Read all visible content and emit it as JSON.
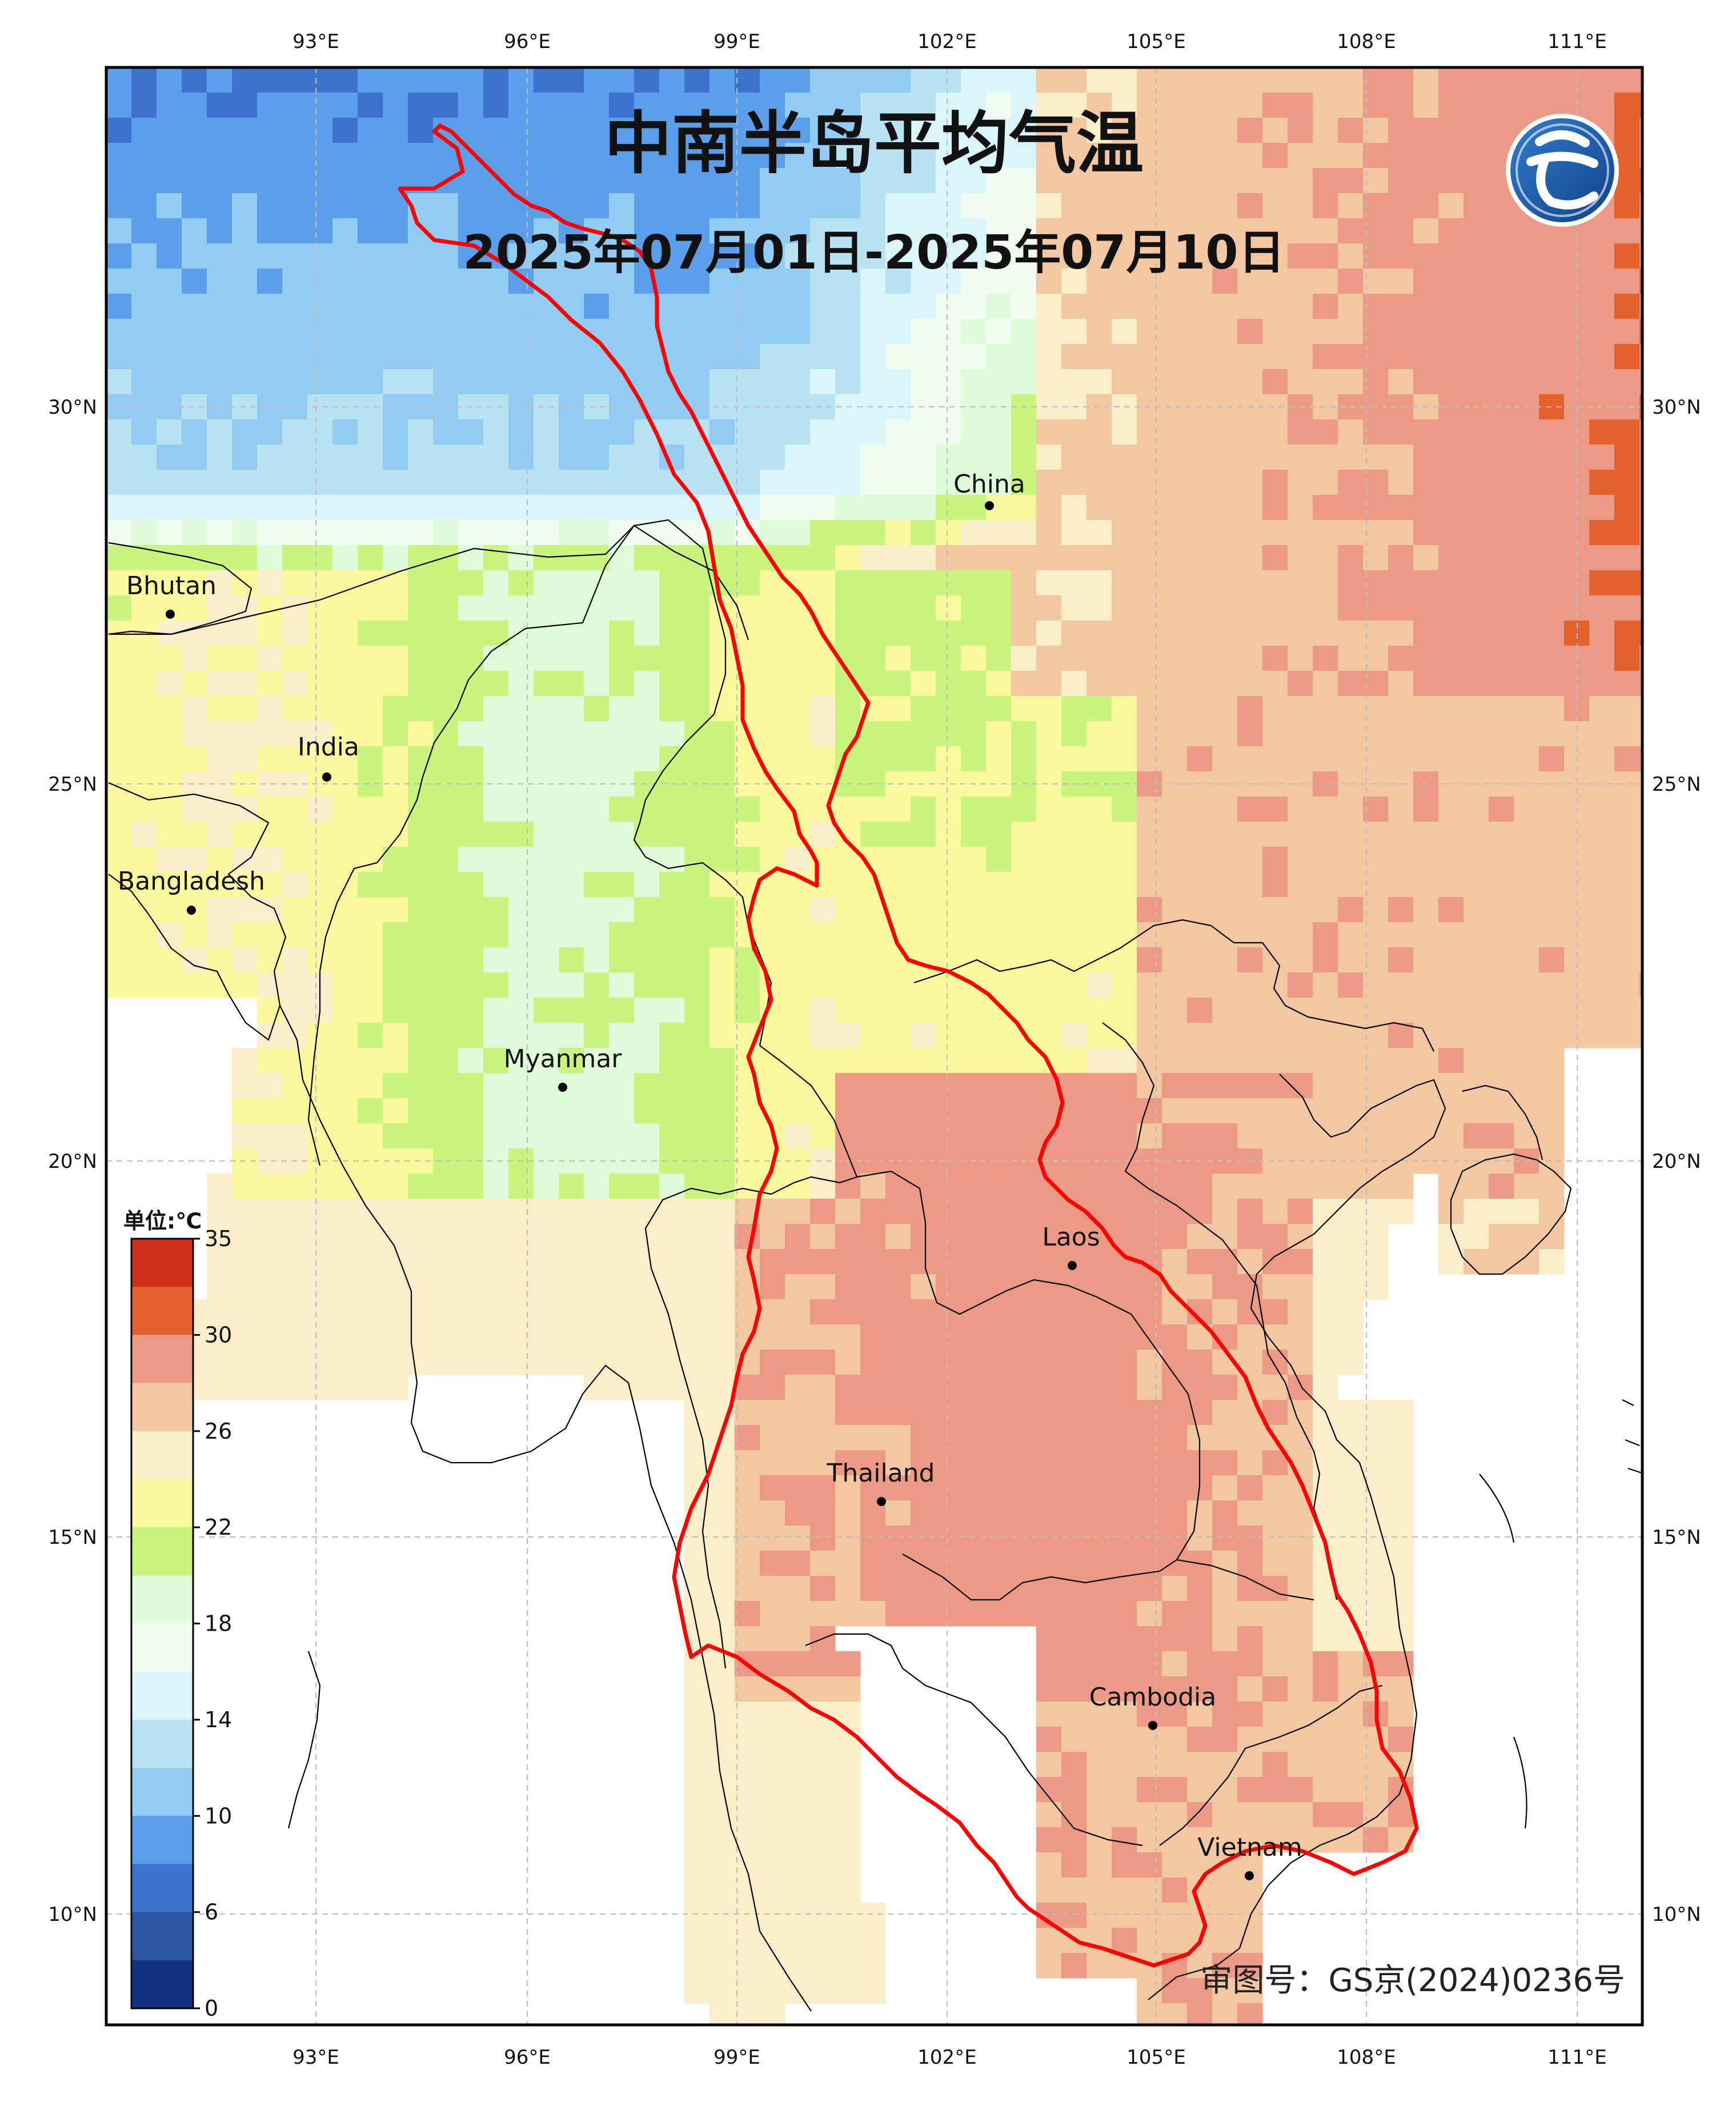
{
  "map": {
    "title": "中南半岛平均气温",
    "subtitle": "2025年07月01日-2025年07月10日",
    "approval_number": "审图号：GS京(2024)0236号",
    "logo_icon": "cma-logo-icon",
    "longitude_ticks": [
      "93°E",
      "96°E",
      "99°E",
      "102°E",
      "105°E",
      "108°E",
      "111°E"
    ],
    "latitude_ticks": [
      "30°N",
      "25°N",
      "20°N",
      "15°N",
      "10°N"
    ],
    "countries": [
      {
        "name": "China"
      },
      {
        "name": "Bhutan"
      },
      {
        "name": "India"
      },
      {
        "name": "Bangladesh"
      },
      {
        "name": "Myanmar"
      },
      {
        "name": "Laos"
      },
      {
        "name": "Thailand"
      },
      {
        "name": "Cambodia"
      },
      {
        "name": "Vietnam"
      }
    ],
    "boundary_color": "#ff0000",
    "grid_color": "#bdbdbd"
  },
  "colorbar": {
    "unit": "单位:℃",
    "tick_labels": [
      "35",
      "30",
      "26",
      "22",
      "18",
      "14",
      "10",
      "6",
      "0"
    ],
    "colors_top_to_bottom": [
      "#d0311d",
      "#e5622e",
      "#ec9a86",
      "#f4c7a3",
      "#fbeeca",
      "#fbf99d",
      "#c9f47e",
      "#dffbd7",
      "#f0fdf0",
      "#daf6fa",
      "#b9e3f2",
      "#93ccf3",
      "#5b9eea",
      "#3c73cf",
      "#2a579f",
      "#11327f"
    ]
  }
}
